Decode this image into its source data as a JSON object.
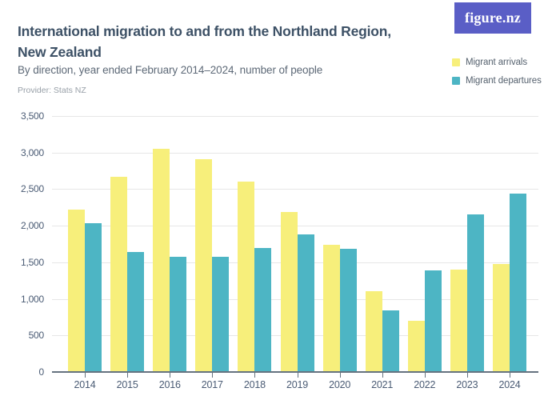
{
  "header": {
    "title_line1": "International migration to and from the Northland Region,",
    "title_line2": "New Zealand",
    "subtitle": "By direction, year ended February 2014–2024, number of people",
    "provider": "Provider: Stats NZ",
    "logo_text": "figure.nz"
  },
  "legend": {
    "position": "top-right",
    "items": [
      {
        "label": "Migrant arrivals",
        "color": "#F7EF7B"
      },
      {
        "label": "Migrant departures",
        "color": "#4DB5C4"
      }
    ]
  },
  "chart_data": {
    "type": "bar",
    "title": "International migration to and from the Northland Region, New Zealand",
    "subtitle": "By direction, year ended February 2014–2024, number of people",
    "xlabel": "",
    "ylabel": "",
    "categories": [
      "2014",
      "2015",
      "2016",
      "2017",
      "2018",
      "2019",
      "2020",
      "2021",
      "2022",
      "2023",
      "2024"
    ],
    "series": [
      {
        "name": "Migrant arrivals",
        "color": "#F7EF7B",
        "values": [
          2220,
          2670,
          3050,
          2910,
          2600,
          2190,
          1740,
          1100,
          700,
          1400,
          1480
        ]
      },
      {
        "name": "Migrant departures",
        "color": "#4DB5C4",
        "values": [
          2040,
          1640,
          1570,
          1570,
          1700,
          1880,
          1690,
          840,
          1390,
          2150,
          2440
        ]
      }
    ],
    "ylim": [
      0,
      3500
    ],
    "ytick_interval": 500,
    "ytick_labels": [
      "0",
      "500",
      "1,000",
      "1,500",
      "2,000",
      "2,500",
      "3,000",
      "3,500"
    ],
    "grid": true,
    "legend_position": "top-right"
  },
  "colors": {
    "title": "#3D5166",
    "subtitle": "#5D6977",
    "provider": "#98A0A8",
    "axis_text": "#4A5B74",
    "gridline": "#E7E7E7",
    "axis_line": "#66737F",
    "logo_bg": "#5A5EC6",
    "logo_text": "#FFFFFF",
    "background": "#FFFFFF"
  }
}
